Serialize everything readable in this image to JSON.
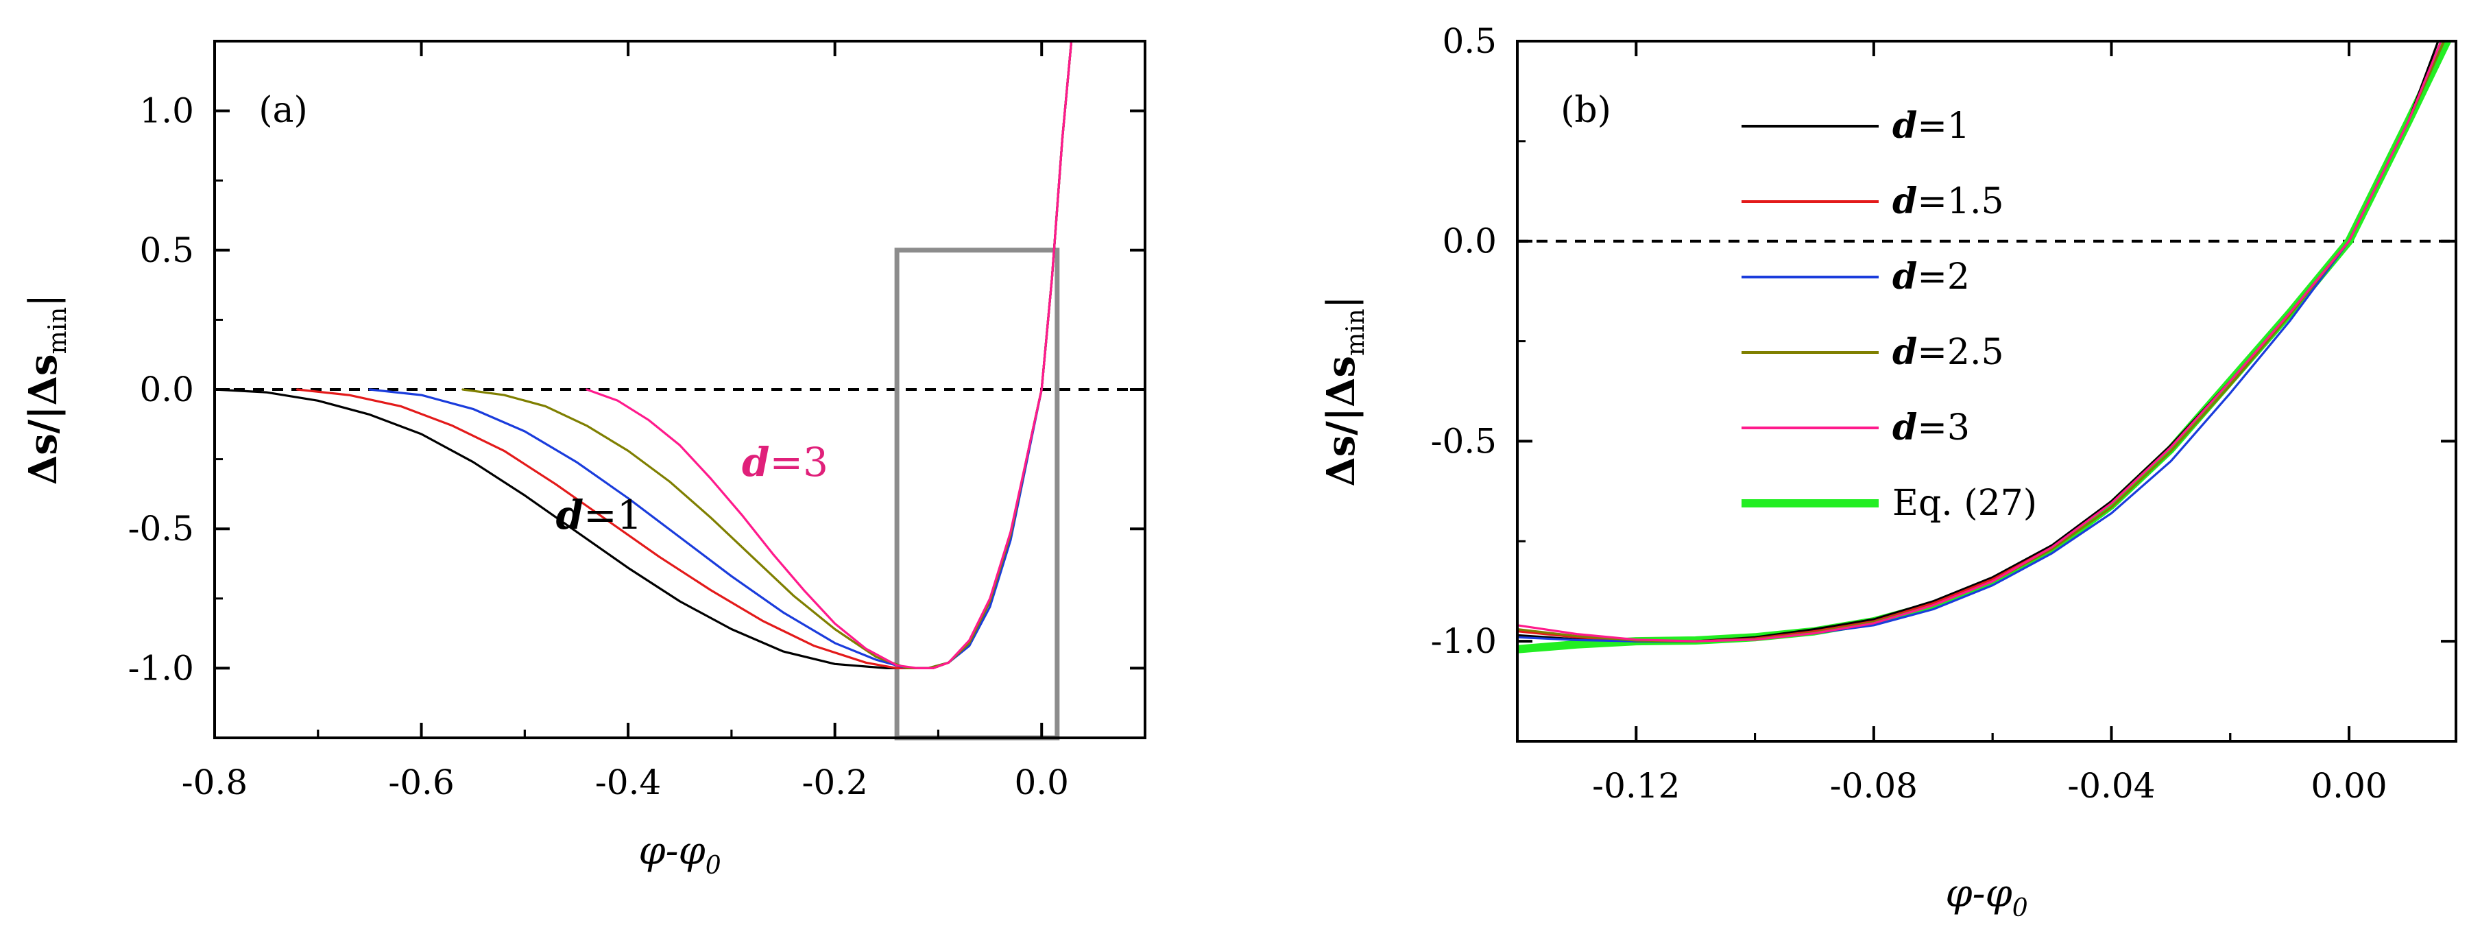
{
  "chart_data": [
    {
      "id": "a",
      "type": "line",
      "panel_label": "(a)",
      "xlabel_parts": [
        "φ-φ",
        "0"
      ],
      "ylabel_parts": [
        "Δs/|Δs",
        "min",
        "|"
      ],
      "xlim": [
        -0.8,
        0.1
      ],
      "ylim": [
        -1.25,
        1.25
      ],
      "xticks": [
        -0.8,
        -0.6,
        -0.4,
        -0.2,
        0.0
      ],
      "xtick_labels": [
        "-0.8",
        "-0.6",
        "-0.4",
        "-0.2",
        "0.0"
      ],
      "yticks": [
        -1.0,
        -0.5,
        0.0,
        0.5,
        1.0
      ],
      "ytick_labels": [
        "-1.0",
        "-0.5",
        "0.0",
        "0.5",
        "1.0"
      ],
      "zero_line": 0.0,
      "zoom_box": {
        "x": [
          -0.14,
          0.015
        ],
        "y": [
          -1.25,
          0.5
        ]
      },
      "annotations": [
        {
          "prefix": "d",
          "text": "=1",
          "color": "#000000",
          "x": -0.47,
          "y": -0.5
        },
        {
          "prefix": "d",
          "text": "=3",
          "color": "#e0207a",
          "x": -0.29,
          "y": -0.31
        }
      ],
      "series": [
        {
          "name": "d=1",
          "color": "#000000",
          "x": [
            -0.8,
            -0.75,
            -0.7,
            -0.65,
            -0.6,
            -0.55,
            -0.5,
            -0.45,
            -0.4,
            -0.35,
            -0.3,
            -0.25,
            -0.2,
            -0.15,
            -0.12,
            -0.105,
            -0.09,
            -0.07,
            -0.05,
            -0.03,
            -0.01,
            0.0,
            0.01,
            0.02,
            0.03
          ],
          "y": [
            0,
            -0.01,
            -0.04,
            -0.09,
            -0.16,
            -0.26,
            -0.38,
            -0.51,
            -0.64,
            -0.76,
            -0.86,
            -0.94,
            -0.985,
            -1.0,
            -1.0,
            -1.0,
            -0.98,
            -0.91,
            -0.76,
            -0.52,
            -0.17,
            0.0,
            0.4,
            0.9,
            1.3
          ]
        },
        {
          "name": "d=1.5",
          "color": "#e31a1a",
          "x": [
            -0.72,
            -0.67,
            -0.62,
            -0.57,
            -0.52,
            -0.47,
            -0.42,
            -0.37,
            -0.32,
            -0.27,
            -0.22,
            -0.17,
            -0.14,
            -0.12,
            -0.105,
            -0.09,
            -0.07,
            -0.05,
            -0.03,
            -0.01,
            0.0,
            0.01,
            0.02,
            0.03
          ],
          "y": [
            0,
            -0.02,
            -0.06,
            -0.13,
            -0.22,
            -0.34,
            -0.47,
            -0.6,
            -0.72,
            -0.83,
            -0.92,
            -0.98,
            -1.0,
            -1.0,
            -1.0,
            -0.98,
            -0.91,
            -0.76,
            -0.52,
            -0.17,
            0.0,
            0.4,
            0.9,
            1.3
          ]
        },
        {
          "name": "d=2",
          "color": "#1a3cdc",
          "x": [
            -0.65,
            -0.6,
            -0.55,
            -0.5,
            -0.45,
            -0.4,
            -0.35,
            -0.3,
            -0.25,
            -0.2,
            -0.16,
            -0.13,
            -0.11,
            -0.09,
            -0.07,
            -0.05,
            -0.03,
            -0.01,
            0.0,
            0.01,
            0.02,
            0.03
          ],
          "y": [
            0,
            -0.02,
            -0.07,
            -0.15,
            -0.26,
            -0.39,
            -0.53,
            -0.67,
            -0.8,
            -0.91,
            -0.97,
            -1.0,
            -1.0,
            -0.98,
            -0.92,
            -0.78,
            -0.54,
            -0.18,
            0.0,
            0.4,
            0.9,
            1.3
          ]
        },
        {
          "name": "d=2.5",
          "color": "#7f7f00",
          "x": [
            -0.56,
            -0.52,
            -0.48,
            -0.44,
            -0.4,
            -0.36,
            -0.32,
            -0.28,
            -0.24,
            -0.2,
            -0.16,
            -0.13,
            -0.11,
            -0.09,
            -0.07,
            -0.05,
            -0.03,
            -0.01,
            0.0,
            0.01,
            0.02,
            0.03
          ],
          "y": [
            0,
            -0.02,
            -0.06,
            -0.13,
            -0.22,
            -0.33,
            -0.46,
            -0.6,
            -0.74,
            -0.86,
            -0.96,
            -1.0,
            -1.0,
            -0.98,
            -0.91,
            -0.76,
            -0.52,
            -0.17,
            0.0,
            0.4,
            0.9,
            1.3
          ]
        },
        {
          "name": "d=3",
          "color": "#ff1a8c",
          "x": [
            -0.44,
            -0.41,
            -0.38,
            -0.35,
            -0.32,
            -0.29,
            -0.26,
            -0.23,
            -0.2,
            -0.17,
            -0.14,
            -0.12,
            -0.105,
            -0.09,
            -0.07,
            -0.05,
            -0.03,
            -0.01,
            0.0,
            0.01,
            0.02,
            0.03
          ],
          "y": [
            0,
            -0.04,
            -0.11,
            -0.2,
            -0.32,
            -0.45,
            -0.59,
            -0.72,
            -0.84,
            -0.93,
            -0.99,
            -1.0,
            -1.0,
            -0.98,
            -0.9,
            -0.75,
            -0.51,
            -0.17,
            0.0,
            0.4,
            0.9,
            1.3
          ]
        }
      ]
    },
    {
      "id": "b",
      "type": "line",
      "panel_label": "(b)",
      "xlabel_parts": [
        "φ-φ",
        "0"
      ],
      "ylabel_parts": [
        "Δs/|Δs",
        "min",
        "|"
      ],
      "xlim": [
        -0.14,
        0.018
      ],
      "ylim": [
        -1.25,
        0.5
      ],
      "xticks": [
        -0.12,
        -0.08,
        -0.04,
        0.0
      ],
      "xtick_labels": [
        "-0.12",
        "-0.08",
        "-0.04",
        "0.00"
      ],
      "yticks": [
        -1.0,
        -0.5,
        0.0,
        0.5
      ],
      "ytick_labels": [
        "-1.0",
        "-0.5",
        "0.0",
        "0.5"
      ],
      "zero_line": 0.0,
      "legend": {
        "position": "top-left",
        "entries": [
          {
            "prefix": "d",
            "text": "=1",
            "color": "#000000",
            "width": 1
          },
          {
            "prefix": "d",
            "text": "=1.5",
            "color": "#e31a1a",
            "width": 1
          },
          {
            "prefix": "d",
            "text": "=2",
            "color": "#1a3cdc",
            "width": 1
          },
          {
            "prefix": "d",
            "text": "=2.5",
            "color": "#7f7f00",
            "width": 1
          },
          {
            "prefix": "d",
            "text": "=3",
            "color": "#ff1a8c",
            "width": 1
          },
          {
            "prefix": "",
            "text": "Eq. (27)",
            "color": "#22ee22",
            "width": 3
          }
        ]
      },
      "series": [
        {
          "name": "Eq. (27)",
          "color": "#22ee22",
          "width": 3,
          "x": [
            -0.14,
            -0.13,
            -0.12,
            -0.11,
            -0.1,
            -0.09,
            -0.08,
            -0.07,
            -0.06,
            -0.05,
            -0.04,
            -0.03,
            -0.02,
            -0.01,
            0.0,
            0.01,
            0.0165
          ],
          "y": [
            -1.02,
            -1.008,
            -1.0,
            -0.998,
            -0.99,
            -0.975,
            -0.95,
            -0.91,
            -0.85,
            -0.77,
            -0.66,
            -0.52,
            -0.35,
            -0.18,
            0.0,
            0.3,
            0.5
          ]
        },
        {
          "name": "d=1",
          "color": "#000000",
          "width": 1,
          "x": [
            -0.14,
            -0.13,
            -0.12,
            -0.11,
            -0.1,
            -0.09,
            -0.08,
            -0.07,
            -0.06,
            -0.05,
            -0.04,
            -0.03,
            -0.02,
            -0.01,
            0.0,
            0.01,
            0.015
          ],
          "y": [
            -0.985,
            -0.995,
            -1.0,
            -1.0,
            -0.99,
            -0.97,
            -0.945,
            -0.9,
            -0.84,
            -0.76,
            -0.65,
            -0.51,
            -0.35,
            -0.18,
            0.0,
            0.3,
            0.5
          ]
        },
        {
          "name": "d=1.5",
          "color": "#e31a1a",
          "width": 1,
          "x": [
            -0.14,
            -0.13,
            -0.12,
            -0.11,
            -0.1,
            -0.09,
            -0.08,
            -0.07,
            -0.06,
            -0.05,
            -0.04,
            -0.03,
            -0.02,
            -0.01,
            0.0,
            0.01,
            0.0155
          ],
          "y": [
            -0.975,
            -0.99,
            -1.0,
            -1.0,
            -0.993,
            -0.975,
            -0.95,
            -0.905,
            -0.845,
            -0.765,
            -0.655,
            -0.515,
            -0.35,
            -0.18,
            0.0,
            0.3,
            0.5
          ]
        },
        {
          "name": "d=2",
          "color": "#1a3cdc",
          "width": 1,
          "x": [
            -0.14,
            -0.13,
            -0.12,
            -0.11,
            -0.1,
            -0.09,
            -0.08,
            -0.07,
            -0.06,
            -0.05,
            -0.04,
            -0.03,
            -0.02,
            -0.01,
            0.0,
            0.01,
            0.016
          ],
          "y": [
            -0.99,
            -0.997,
            -1.0,
            -1.0,
            -0.995,
            -0.98,
            -0.96,
            -0.92,
            -0.86,
            -0.78,
            -0.68,
            -0.55,
            -0.38,
            -0.2,
            0.0,
            0.3,
            0.5
          ]
        },
        {
          "name": "d=2.5",
          "color": "#7f7f00",
          "width": 1,
          "x": [
            -0.14,
            -0.13,
            -0.12,
            -0.11,
            -0.1,
            -0.09,
            -0.08,
            -0.07,
            -0.06,
            -0.05,
            -0.04,
            -0.03,
            -0.02,
            -0.01,
            0.0,
            0.01,
            0.016
          ],
          "y": [
            -0.97,
            -0.987,
            -0.998,
            -1.0,
            -0.995,
            -0.978,
            -0.952,
            -0.91,
            -0.85,
            -0.77,
            -0.665,
            -0.525,
            -0.36,
            -0.185,
            0.0,
            0.3,
            0.5
          ]
        },
        {
          "name": "d=3",
          "color": "#ff1a8c",
          "width": 1,
          "x": [
            -0.14,
            -0.13,
            -0.12,
            -0.11,
            -0.1,
            -0.09,
            -0.08,
            -0.07,
            -0.06,
            -0.05,
            -0.04,
            -0.03,
            -0.02,
            -0.01,
            0.0,
            0.01,
            0.0155
          ],
          "y": [
            -0.96,
            -0.982,
            -0.996,
            -1.0,
            -0.996,
            -0.98,
            -0.955,
            -0.91,
            -0.85,
            -0.765,
            -0.655,
            -0.515,
            -0.35,
            -0.18,
            0.0,
            0.3,
            0.5
          ]
        }
      ]
    }
  ]
}
